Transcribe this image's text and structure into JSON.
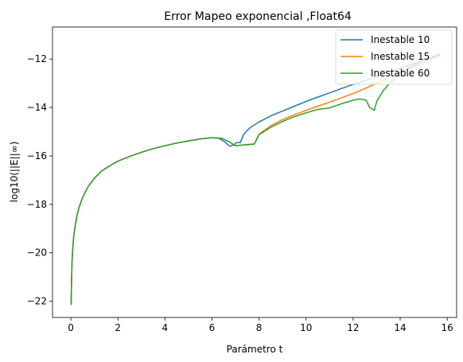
{
  "chart_data": {
    "type": "line",
    "title": "Error Mapeo exponencial  ,Float64",
    "xlabel": "Parámetro t",
    "ylabel": "log10(||E||∞)",
    "xlim": [
      -0.78,
      16.4
    ],
    "ylim": [
      -22.67,
      -10.68
    ],
    "xticks": [
      0,
      2,
      4,
      6,
      8,
      10,
      12,
      14,
      16
    ],
    "yticks": [
      -22,
      -20,
      -18,
      -16,
      -14,
      -12
    ],
    "xtick_labels": [
      "0",
      "2",
      "4",
      "6",
      "8",
      "10",
      "12",
      "14",
      "16"
    ],
    "ytick_labels": [
      "−22",
      "−20",
      "−18",
      "−16",
      "−14",
      "−12"
    ],
    "grid": false,
    "legend_position": "top-right",
    "series": [
      {
        "name": "Inestable 10",
        "color": "#1f77b4",
        "points": [
          [
            0.01,
            -22.15
          ],
          [
            0.02,
            -21.6
          ],
          [
            0.03,
            -21.1
          ],
          [
            0.05,
            -20.4
          ],
          [
            0.08,
            -19.85
          ],
          [
            0.12,
            -19.35
          ],
          [
            0.18,
            -18.9
          ],
          [
            0.25,
            -18.5
          ],
          [
            0.35,
            -18.12
          ],
          [
            0.5,
            -17.72
          ],
          [
            0.7,
            -17.32
          ],
          [
            1.0,
            -16.92
          ],
          [
            1.3,
            -16.63
          ],
          [
            1.7,
            -16.38
          ],
          [
            2.0,
            -16.22
          ],
          [
            2.5,
            -16.02
          ],
          [
            3.0,
            -15.85
          ],
          [
            3.5,
            -15.7
          ],
          [
            4.0,
            -15.58
          ],
          [
            4.5,
            -15.47
          ],
          [
            5.0,
            -15.38
          ],
          [
            5.5,
            -15.3
          ],
          [
            6.0,
            -15.25
          ],
          [
            6.3,
            -15.28
          ],
          [
            6.55,
            -15.42
          ],
          [
            6.75,
            -15.6
          ],
          [
            6.9,
            -15.55
          ],
          [
            7.05,
            -15.45
          ],
          [
            7.2,
            -15.45
          ],
          [
            7.35,
            -15.1
          ],
          [
            7.6,
            -14.85
          ],
          [
            8.0,
            -14.6
          ],
          [
            8.5,
            -14.35
          ],
          [
            9.0,
            -14.15
          ],
          [
            9.5,
            -13.95
          ],
          [
            10.0,
            -13.75
          ],
          [
            10.5,
            -13.57
          ],
          [
            11.0,
            -13.4
          ],
          [
            11.5,
            -13.22
          ],
          [
            12.0,
            -13.05
          ],
          [
            12.5,
            -12.9
          ],
          [
            13.0,
            -12.72
          ],
          [
            13.5,
            -12.55
          ],
          [
            14.0,
            -12.38
          ],
          [
            14.5,
            -12.22
          ],
          [
            15.0,
            -12.05
          ],
          [
            15.7,
            -11.82
          ]
        ]
      },
      {
        "name": "Inestable 15",
        "color": "#ff7f0e",
        "points": [
          [
            0.01,
            -22.15
          ],
          [
            0.02,
            -21.6
          ],
          [
            0.03,
            -21.1
          ],
          [
            0.05,
            -20.4
          ],
          [
            0.08,
            -19.85
          ],
          [
            0.12,
            -19.35
          ],
          [
            0.18,
            -18.9
          ],
          [
            0.25,
            -18.5
          ],
          [
            0.35,
            -18.12
          ],
          [
            0.5,
            -17.72
          ],
          [
            0.7,
            -17.32
          ],
          [
            1.0,
            -16.92
          ],
          [
            1.3,
            -16.63
          ],
          [
            1.7,
            -16.38
          ],
          [
            2.0,
            -16.22
          ],
          [
            2.5,
            -16.02
          ],
          [
            3.0,
            -15.85
          ],
          [
            3.5,
            -15.7
          ],
          [
            4.0,
            -15.58
          ],
          [
            4.5,
            -15.47
          ],
          [
            5.0,
            -15.38
          ],
          [
            5.5,
            -15.3
          ],
          [
            6.0,
            -15.25
          ],
          [
            6.4,
            -15.27
          ],
          [
            6.7,
            -15.4
          ],
          [
            7.0,
            -15.58
          ],
          [
            7.3,
            -15.55
          ],
          [
            7.8,
            -15.5
          ],
          [
            8.0,
            -15.1
          ],
          [
            8.5,
            -14.75
          ],
          [
            9.0,
            -14.5
          ],
          [
            9.5,
            -14.3
          ],
          [
            10.0,
            -14.12
          ],
          [
            10.5,
            -13.95
          ],
          [
            11.0,
            -13.78
          ],
          [
            11.5,
            -13.6
          ],
          [
            12.0,
            -13.42
          ],
          [
            12.5,
            -13.22
          ],
          [
            13.0,
            -13.0
          ],
          [
            13.5,
            -12.78
          ],
          [
            14.0,
            -12.55
          ],
          [
            14.5,
            -12.35
          ],
          [
            15.0,
            -12.15
          ],
          [
            15.7,
            -11.85
          ]
        ]
      },
      {
        "name": "Inestable 60",
        "color": "#2ca02c",
        "points": [
          [
            0.01,
            -22.15
          ],
          [
            0.02,
            -21.6
          ],
          [
            0.03,
            -21.1
          ],
          [
            0.05,
            -20.4
          ],
          [
            0.08,
            -19.85
          ],
          [
            0.12,
            -19.35
          ],
          [
            0.18,
            -18.9
          ],
          [
            0.25,
            -18.5
          ],
          [
            0.35,
            -18.12
          ],
          [
            0.5,
            -17.72
          ],
          [
            0.7,
            -17.32
          ],
          [
            1.0,
            -16.92
          ],
          [
            1.3,
            -16.63
          ],
          [
            1.7,
            -16.38
          ],
          [
            2.0,
            -16.22
          ],
          [
            2.5,
            -16.02
          ],
          [
            3.0,
            -15.85
          ],
          [
            3.5,
            -15.7
          ],
          [
            4.0,
            -15.58
          ],
          [
            4.5,
            -15.47
          ],
          [
            5.0,
            -15.38
          ],
          [
            5.5,
            -15.3
          ],
          [
            6.0,
            -15.25
          ],
          [
            6.4,
            -15.27
          ],
          [
            6.7,
            -15.4
          ],
          [
            7.0,
            -15.58
          ],
          [
            7.3,
            -15.55
          ],
          [
            7.8,
            -15.52
          ],
          [
            8.0,
            -15.12
          ],
          [
            8.5,
            -14.82
          ],
          [
            9.0,
            -14.58
          ],
          [
            9.5,
            -14.38
          ],
          [
            10.0,
            -14.22
          ],
          [
            10.5,
            -14.08
          ],
          [
            11.0,
            -14.02
          ],
          [
            11.5,
            -13.85
          ],
          [
            12.0,
            -13.7
          ],
          [
            12.3,
            -13.65
          ],
          [
            12.55,
            -13.7
          ],
          [
            12.7,
            -14.0
          ],
          [
            12.9,
            -14.12
          ],
          [
            13.0,
            -13.75
          ],
          [
            13.3,
            -13.28
          ],
          [
            13.6,
            -12.95
          ],
          [
            14.0,
            -12.6
          ],
          [
            14.5,
            -12.3
          ],
          [
            15.0,
            -12.05
          ],
          [
            15.7,
            -11.78
          ]
        ]
      }
    ]
  }
}
